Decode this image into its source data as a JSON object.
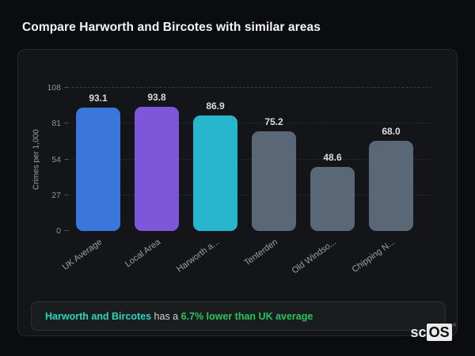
{
  "page": {
    "title": "Compare Harworth and Bircotes with similar areas"
  },
  "chart_data": {
    "type": "bar",
    "title": "Compare Harworth and Bircotes with similar areas",
    "xlabel": "",
    "ylabel": "Crimes per 1,000",
    "ylim": [
      0,
      108
    ],
    "yticks": [
      0,
      27,
      54,
      81,
      108
    ],
    "grid": "horizontal-dashed",
    "legend": "none",
    "categories": [
      "UK Average",
      "Local Area",
      "Harworth a...",
      "Tenterden",
      "Old Windso...",
      "Chipping N..."
    ],
    "values": [
      93.1,
      93.8,
      86.9,
      75.2,
      48.6,
      68.0
    ],
    "labels": [
      "93.1",
      "93.8",
      "86.9",
      "75.2",
      "48.6",
      "68.0"
    ],
    "bar_colors": [
      "#3b76db",
      "#7d56d9",
      "#27b6cd",
      "#5a6777",
      "#5a6777",
      "#5a6777"
    ]
  },
  "insight": {
    "area_name": "Harworth and Bircotes",
    "connector": " has a ",
    "stat": "6.7% lower than UK average"
  },
  "logo": {
    "prefix": "sc",
    "suffix": "OS",
    "registered": "®"
  },
  "colors": {
    "page_bg": "#0b0c0f",
    "card_bg": "#141519",
    "card_border": "#27282e",
    "accent_teal": "#2dd4bf",
    "accent_green": "#27c35f",
    "bar_blue": "#3b76db",
    "bar_purple": "#7d56d9",
    "bar_cyan": "#27b6cd",
    "bar_slate": "#5a6777"
  }
}
